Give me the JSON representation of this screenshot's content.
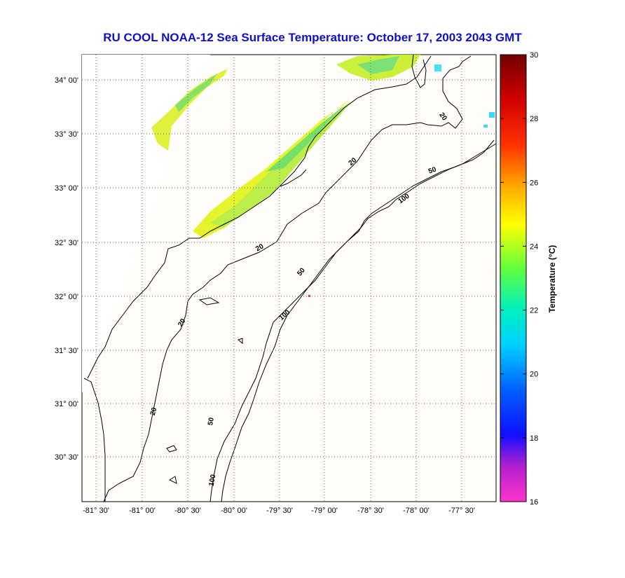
{
  "title": "RU COOL  NOAA-12  Sea Surface Temperature:  October 17, 2003 2043 GMT",
  "colorbar": {
    "label": "Temperature (°C)",
    "ticks": [
      "16",
      "18",
      "20",
      "22",
      "24",
      "26",
      "28",
      "30"
    ],
    "colors": [
      "#ff00ff",
      "#8a2be2",
      "#0000ff",
      "#00bfff",
      "#00ffff",
      "#7fff00",
      "#ffff00",
      "#ffa500",
      "#ff0000",
      "#800000"
    ]
  },
  "axes": {
    "lat_labels": [
      "34° 00'",
      "33° 30'",
      "33° 00'",
      "32° 30'",
      "32° 00'",
      "31° 30'",
      "31° 00'",
      "30° 30'"
    ],
    "lon_labels": [
      "-81° 30'",
      "-81° 00'",
      "-80° 30'",
      "-80° 00'",
      "-79° 30'",
      "-79° 00'",
      "-78° 30'",
      "-78° 00'",
      "-77° 30'"
    ]
  },
  "contours": [
    "20",
    "50",
    "100"
  ],
  "contour_labels": [
    "20",
    "20",
    "20",
    "20",
    "20",
    "50",
    "50",
    "50",
    "100",
    "100",
    "100"
  ],
  "colors": {
    "title": "#1010c8",
    "land": "#fefefe",
    "ocean": "#ffffff",
    "coast": "#000000",
    "grid": "#555555"
  }
}
